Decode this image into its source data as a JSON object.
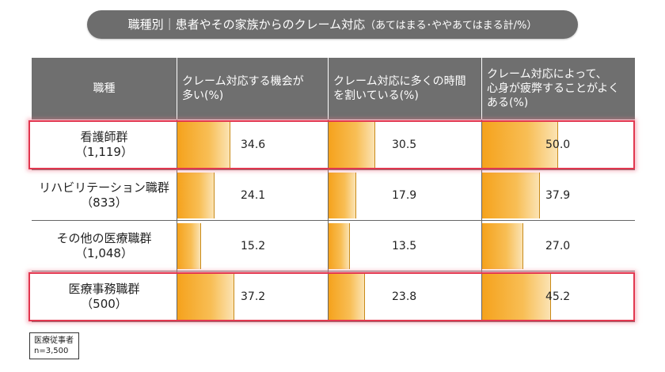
{
  "title": {
    "main": "職種別｜患者やその家族からのクレーム対応",
    "sub": "（あてはまる･ややあてはまる計/%）"
  },
  "table": {
    "row_header_label": "職種",
    "columns": [
      {
        "line1": "クレーム対応する機会が",
        "line2": "多い(%)",
        "line3": ""
      },
      {
        "line1": "クレーム対応に多くの時間",
        "line2": "を割いている(%)",
        "line3": ""
      },
      {
        "line1": "クレーム対応によって、",
        "line2": "心身が疲弊することがよく",
        "line3": "ある(%)"
      }
    ],
    "rows": [
      {
        "name": "看護師群",
        "n": "（1,119）",
        "values": [
          "34.6",
          "30.5",
          "50.0"
        ],
        "highlighted": true
      },
      {
        "name": "リハビリテーション職群",
        "n": "（833）",
        "values": [
          "24.1",
          "17.9",
          "37.9"
        ],
        "highlighted": false
      },
      {
        "name": "その他の医療職群",
        "n": "（1,048）",
        "values": [
          "15.2",
          "13.5",
          "27.0"
        ],
        "highlighted": false
      },
      {
        "name": "医療事務職群",
        "n": "（500）",
        "values": [
          "37.2",
          "23.8",
          "45.2"
        ],
        "highlighted": true
      }
    ]
  },
  "note": {
    "line1": "医療従事者",
    "line2": "n=3,500"
  },
  "colors": {
    "header_bg": "#6f6f6f",
    "bar": "#f5a21c",
    "highlight_border": "#e1374f"
  },
  "chart_data": {
    "type": "bar",
    "title": "職種別｜患者やその家族からのクレーム対応（あてはまる･ややあてはまる計/%）",
    "categories": [
      "看護師群（1,119）",
      "リハビリテーション職群（833）",
      "その他の医療職群（1,048）",
      "医療事務職群（500）"
    ],
    "series": [
      {
        "name": "クレーム対応する機会が多い(%)",
        "values": [
          34.6,
          24.1,
          15.2,
          37.2
        ]
      },
      {
        "name": "クレーム対応に多くの時間を割いている(%)",
        "values": [
          30.5,
          17.9,
          13.5,
          23.8
        ]
      },
      {
        "name": "クレーム対応によって、心身が疲弊することがよくある(%)",
        "values": [
          50.0,
          37.9,
          27.0,
          45.2
        ]
      }
    ],
    "ylim": [
      0,
      100
    ],
    "orientation": "horizontal",
    "grid": false,
    "highlighted_categories": [
      "看護師群（1,119）",
      "医療事務職群（500）"
    ]
  }
}
